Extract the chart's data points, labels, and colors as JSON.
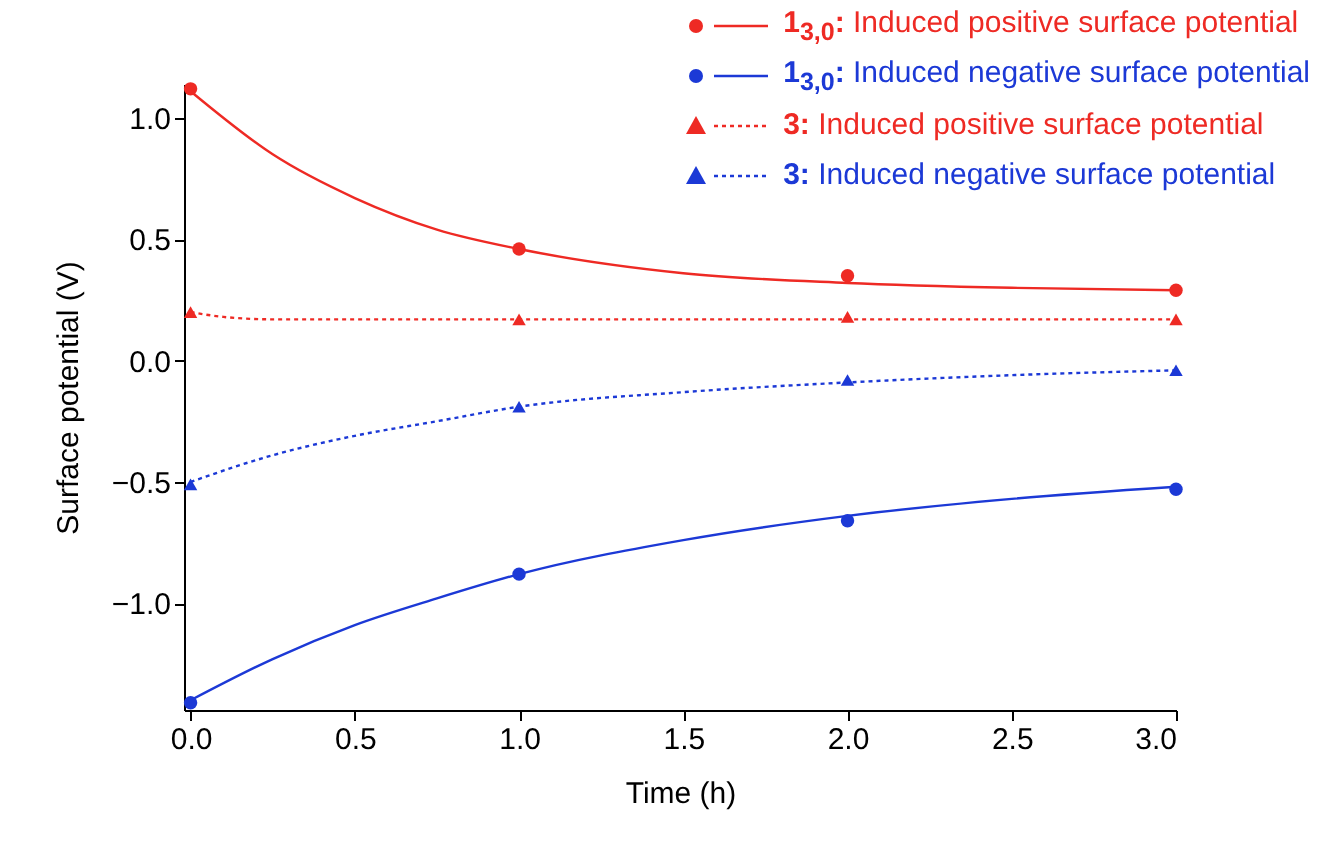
{
  "chart_data": {
    "type": "scatter",
    "xlabel": "Time (h)",
    "ylabel": "Surface potential (V)",
    "xlim": [
      -0.02,
      3.0
    ],
    "ylim": [
      -1.44,
      1.14
    ],
    "xticks": [
      {
        "value": 0,
        "label": "0.0"
      },
      {
        "value": 0.5,
        "label": "0.5"
      },
      {
        "value": 1,
        "label": "1.0"
      },
      {
        "value": 1.5,
        "label": "1.5"
      },
      {
        "value": 2,
        "label": "2.0"
      },
      {
        "value": 2.5,
        "label": "2.5"
      },
      {
        "value": 3,
        "label": "3.0"
      }
    ],
    "yticks": [
      {
        "value": -1,
        "label": "−1.0"
      },
      {
        "value": -0.5,
        "label": "−0.5"
      },
      {
        "value": 0,
        "label": "0.0"
      },
      {
        "value": 0.5,
        "label": "0.5"
      },
      {
        "value": 1,
        "label": "1.0"
      }
    ],
    "grid": false,
    "legend": "top right",
    "series": [
      {
        "name": "1$_{3,0}$: Induced positive surface potential",
        "marker": "circle",
        "line_style": "solid",
        "color": "#ee2a24",
        "x": [
          0,
          1,
          2,
          3
        ],
        "values": [
          1.12,
          0.46,
          0.35,
          0.29
        ]
      },
      {
        "name": "1$_{3,0}$: Induced negative surface potential",
        "marker": "circle",
        "line_style": "solid",
        "color": "#1c39d6",
        "x": [
          0,
          1,
          2,
          3
        ],
        "values": [
          -1.41,
          -0.88,
          -0.66,
          -0.53
        ]
      },
      {
        "name": "3: Induced positive surface potential",
        "marker": "triangle",
        "line_style": "dotted",
        "color": "#ee2a24",
        "x": [
          0,
          1,
          2,
          3
        ],
        "values": [
          0.2,
          0.17,
          0.18,
          0.17
        ]
      },
      {
        "name": "3: Induced negative surface potential",
        "marker": "triangle",
        "line_style": "dotted",
        "color": "#1c39d6",
        "x": [
          0,
          1,
          2,
          3
        ],
        "values": [
          -0.51,
          -0.19,
          -0.08,
          -0.04
        ]
      },
      {
        "type": "line",
        "line_style": "solid",
        "color": "#ee2a24",
        "x": [
          0,
          0.25,
          0.5,
          0.75,
          1,
          1.5,
          2,
          2.5,
          3
        ],
        "values": [
          1.11,
          0.85,
          0.67,
          0.54,
          0.46,
          0.36,
          0.32,
          0.3,
          0.29
        ]
      },
      {
        "type": "line",
        "line_style": "solid",
        "color": "#1c39d6",
        "x": [
          0,
          0.25,
          0.5,
          0.75,
          1,
          1.5,
          2,
          2.5,
          3
        ],
        "values": [
          -1.4,
          -1.23,
          -1.09,
          -0.98,
          -0.88,
          -0.74,
          -0.64,
          -0.57,
          -0.52
        ]
      },
      {
        "type": "line",
        "line_style": "dotted",
        "color": "#ee2a24",
        "x": [
          0,
          0.1,
          0.25,
          1,
          2,
          3
        ],
        "values": [
          0.2,
          0.18,
          0.17,
          0.17,
          0.17,
          0.17
        ]
      },
      {
        "type": "line",
        "line_style": "dotted",
        "color": "#1c39d6",
        "x": [
          0,
          0.25,
          0.5,
          0.75,
          1,
          1.5,
          2,
          2.5,
          3
        ],
        "values": [
          -0.5,
          -0.39,
          -0.31,
          -0.25,
          -0.19,
          -0.13,
          -0.09,
          -0.06,
          -0.04
        ]
      }
    ]
  }
}
